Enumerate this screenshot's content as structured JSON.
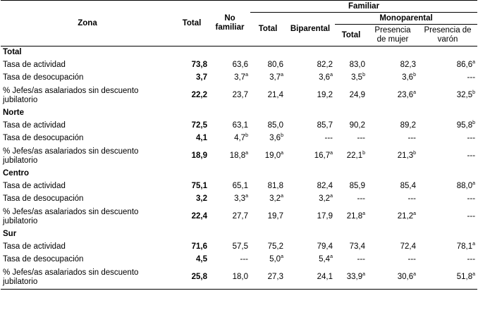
{
  "header": {
    "zona": "Zona",
    "total": "Total",
    "no_familiar": "No familiar",
    "familiar": "Familiar",
    "fam_total": "Total",
    "biparental": "Biparental",
    "monoparental": "Monoparental",
    "mono_total": "Total",
    "presencia_mujer": "Presencia de mujer",
    "presencia_varon": "Presencia de varón"
  },
  "zones": [
    {
      "name": "Total",
      "rows": [
        {
          "label": "Tasa de actividad",
          "cells": [
            {
              "v": "73,8",
              "s": ""
            },
            {
              "v": "63,6",
              "s": ""
            },
            {
              "v": "80,6",
              "s": ""
            },
            {
              "v": "82,2",
              "s": ""
            },
            {
              "v": "83,0",
              "s": ""
            },
            {
              "v": "82,3",
              "s": ""
            },
            {
              "v": "86,6",
              "s": "a"
            }
          ]
        },
        {
          "label": "Tasa de desocupación",
          "cells": [
            {
              "v": "3,7",
              "s": ""
            },
            {
              "v": "3,7",
              "s": "a"
            },
            {
              "v": "3,7",
              "s": "a"
            },
            {
              "v": "3,6",
              "s": "a"
            },
            {
              "v": "3,5",
              "s": "b"
            },
            {
              "v": "3,6",
              "s": "b"
            },
            {
              "v": "---",
              "s": ""
            }
          ]
        },
        {
          "label": "% Jefes/as asalariados sin descuento jubilatorio",
          "cells": [
            {
              "v": "22,2",
              "s": ""
            },
            {
              "v": "23,7",
              "s": ""
            },
            {
              "v": "21,4",
              "s": ""
            },
            {
              "v": "19,2",
              "s": ""
            },
            {
              "v": "24,9",
              "s": ""
            },
            {
              "v": "23,6",
              "s": "a"
            },
            {
              "v": "32,5",
              "s": "b"
            }
          ]
        }
      ]
    },
    {
      "name": "Norte",
      "rows": [
        {
          "label": "Tasa de actividad",
          "cells": [
            {
              "v": "72,5",
              "s": ""
            },
            {
              "v": "63,1",
              "s": ""
            },
            {
              "v": "85,0",
              "s": ""
            },
            {
              "v": "85,7",
              "s": ""
            },
            {
              "v": "90,2",
              "s": ""
            },
            {
              "v": "89,2",
              "s": ""
            },
            {
              "v": "95,8",
              "s": "b"
            }
          ]
        },
        {
          "label": "Tasa de desocupación",
          "cells": [
            {
              "v": "4,1",
              "s": ""
            },
            {
              "v": "4,7",
              "s": "b"
            },
            {
              "v": "3,6",
              "s": "b"
            },
            {
              "v": "---",
              "s": ""
            },
            {
              "v": "---",
              "s": ""
            },
            {
              "v": "---",
              "s": ""
            },
            {
              "v": "---",
              "s": ""
            }
          ]
        },
        {
          "label": "% Jefes/as asalariados sin descuento jubilatorio",
          "cells": [
            {
              "v": "18,9",
              "s": ""
            },
            {
              "v": "18,8",
              "s": "a"
            },
            {
              "v": "19,0",
              "s": "a"
            },
            {
              "v": "16,7",
              "s": "a"
            },
            {
              "v": "22,1",
              "s": "b"
            },
            {
              "v": "21,3",
              "s": "b"
            },
            {
              "v": "---",
              "s": ""
            }
          ]
        }
      ]
    },
    {
      "name": "Centro",
      "rows": [
        {
          "label": "Tasa de actividad",
          "cells": [
            {
              "v": "75,1",
              "s": ""
            },
            {
              "v": "65,1",
              "s": ""
            },
            {
              "v": "81,8",
              "s": ""
            },
            {
              "v": "82,4",
              "s": ""
            },
            {
              "v": "85,9",
              "s": ""
            },
            {
              "v": "85,4",
              "s": ""
            },
            {
              "v": "88,0",
              "s": "a"
            }
          ]
        },
        {
          "label": "Tasa de desocupación",
          "cells": [
            {
              "v": "3,2",
              "s": ""
            },
            {
              "v": "3,3",
              "s": "a"
            },
            {
              "v": "3,2",
              "s": "a"
            },
            {
              "v": "3,2",
              "s": "a"
            },
            {
              "v": "---",
              "s": ""
            },
            {
              "v": "---",
              "s": ""
            },
            {
              "v": "---",
              "s": ""
            }
          ]
        },
        {
          "label": "% Jefes/as asalariados sin descuento jubilatorio",
          "cells": [
            {
              "v": "22,4",
              "s": ""
            },
            {
              "v": "27,7",
              "s": ""
            },
            {
              "v": "19,7",
              "s": ""
            },
            {
              "v": "17,9",
              "s": ""
            },
            {
              "v": "21,8",
              "s": "a"
            },
            {
              "v": "21,2",
              "s": "a"
            },
            {
              "v": "---",
              "s": ""
            }
          ]
        }
      ]
    },
    {
      "name": "Sur",
      "rows": [
        {
          "label": "Tasa de actividad",
          "cells": [
            {
              "v": "71,6",
              "s": ""
            },
            {
              "v": "57,5",
              "s": ""
            },
            {
              "v": "75,2",
              "s": ""
            },
            {
              "v": "79,4",
              "s": ""
            },
            {
              "v": "73,4",
              "s": ""
            },
            {
              "v": "72,4",
              "s": ""
            },
            {
              "v": "78,1",
              "s": "a"
            }
          ]
        },
        {
          "label": "Tasa de desocupación",
          "cells": [
            {
              "v": "4,5",
              "s": ""
            },
            {
              "v": "---",
              "s": ""
            },
            {
              "v": "5,0",
              "s": "a"
            },
            {
              "v": "5,4",
              "s": "a"
            },
            {
              "v": "---",
              "s": ""
            },
            {
              "v": "---",
              "s": ""
            },
            {
              "v": "---",
              "s": ""
            }
          ]
        },
        {
          "label": "% Jefes/as asalariados sin descuento jubilatorio",
          "cells": [
            {
              "v": "25,8",
              "s": ""
            },
            {
              "v": "18,0",
              "s": ""
            },
            {
              "v": "27,3",
              "s": ""
            },
            {
              "v": "24,1",
              "s": ""
            },
            {
              "v": "33,9",
              "s": "a"
            },
            {
              "v": "30,6",
              "s": "a"
            },
            {
              "v": "51,8",
              "s": "a"
            }
          ]
        }
      ]
    }
  ]
}
